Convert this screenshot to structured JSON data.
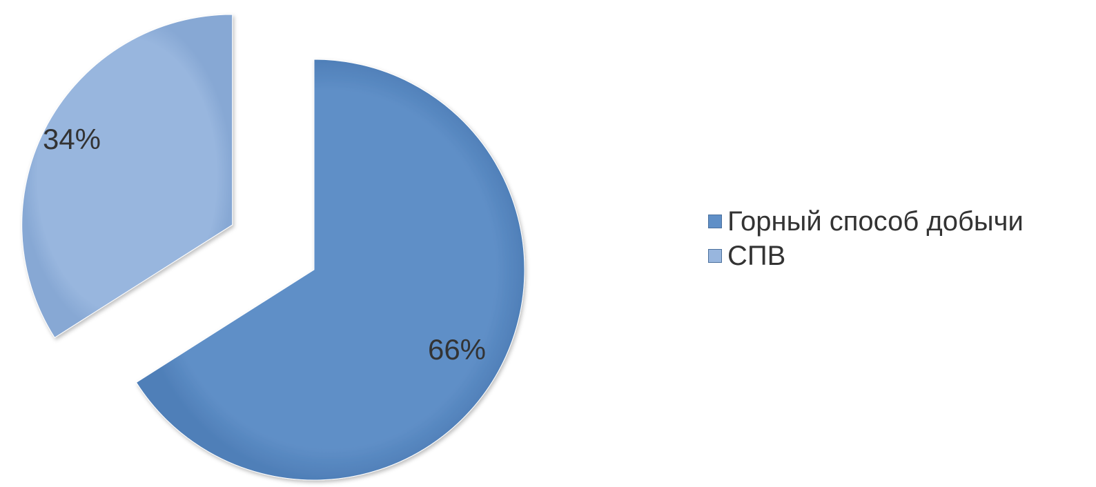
{
  "chart_data": {
    "type": "pie",
    "title": "",
    "slices": [
      {
        "name": "Горный способ добычи",
        "value": 66,
        "label": "66%",
        "color": "#5f8fc7",
        "exploded": false
      },
      {
        "name": "СПВ",
        "value": 34,
        "label": "34%",
        "color": "#98b6de",
        "exploded": true
      }
    ],
    "legend": {
      "position": "right",
      "entries": [
        "Горный способ добычи",
        "СПВ"
      ]
    },
    "show_percent_labels": true,
    "start_angle": "12 o'clock, clockwise"
  }
}
